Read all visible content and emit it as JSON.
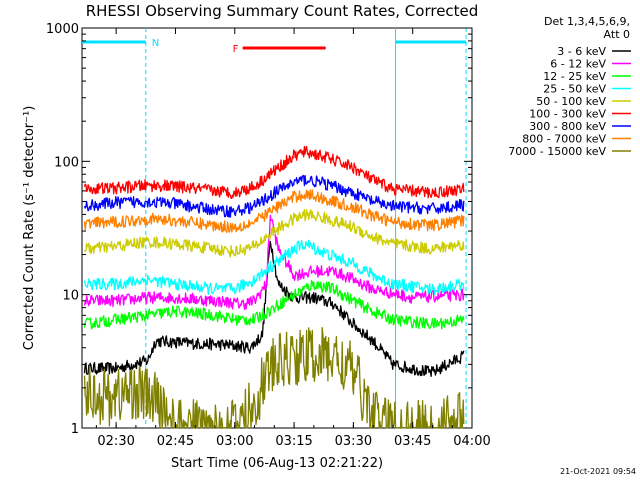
{
  "chart_data": {
    "type": "line",
    "title": "RHESSI Observing Summary Count Rates, Corrected",
    "xlabel": "Start Time (06-Aug-13 02:21:22)",
    "ylabel": "Corrected Count Rate (s⁻¹ detector⁻¹)",
    "y_scale": "log",
    "ylim": [
      1,
      1000
    ],
    "xlim": [
      "02:21:22",
      "04:00:00"
    ],
    "x_ticks": [
      "02:30",
      "02:45",
      "03:00",
      "03:15",
      "03:30",
      "03:45",
      "04:00"
    ],
    "y_ticks": [
      "1",
      "10",
      "100",
      "1000"
    ],
    "legend_header": [
      "Det 1,3,4,5,6,9,",
      "Att 0"
    ],
    "legend_position": "right",
    "grid": false,
    "series": [
      {
        "name": "3 - 6 keV",
        "color": "#000000",
        "x": [
          "02:22",
          "02:30",
          "02:38",
          "02:40",
          "02:50",
          "02:58",
          "03:04",
          "03:07",
          "03:09",
          "03:11",
          "03:15",
          "03:20",
          "03:25",
          "03:30",
          "03:35",
          "03:40",
          "03:50",
          "03:58"
        ],
        "y": [
          2.8,
          2.8,
          3.2,
          4.5,
          4.3,
          4.2,
          4.0,
          5.0,
          26,
          12,
          9.5,
          9.5,
          8.5,
          6,
          4.5,
          3.0,
          2.6,
          3.5
        ]
      },
      {
        "name": "6 - 12 keV",
        "color": "#ff00ff",
        "x": [
          "02:22",
          "02:30",
          "02:38",
          "02:45",
          "02:55",
          "03:02",
          "03:05",
          "03:08",
          "03:09",
          "03:11",
          "03:15",
          "03:20",
          "03:25",
          "03:30",
          "03:35",
          "03:45",
          "03:58"
        ],
        "y": [
          9,
          9,
          9.5,
          9.5,
          9,
          8.5,
          9,
          12,
          40,
          22,
          14,
          15,
          15,
          13,
          11,
          9.5,
          10
        ]
      },
      {
        "name": "12 - 25 keV",
        "color": "#00ff00",
        "x": [
          "02:22",
          "02:30",
          "02:38",
          "02:45",
          "02:55",
          "03:00",
          "03:05",
          "03:10",
          "03:15",
          "03:20",
          "03:25",
          "03:30",
          "03:35",
          "03:40",
          "03:50",
          "03:58"
        ],
        "y": [
          6,
          6.5,
          7,
          7.5,
          7,
          6.5,
          6.5,
          8,
          10,
          12,
          11,
          9,
          7.5,
          6.5,
          6,
          6.5
        ]
      },
      {
        "name": "25 - 50 keV",
        "color": "#00ffff",
        "x": [
          "02:22",
          "02:30",
          "02:38",
          "02:45",
          "02:55",
          "03:00",
          "03:05",
          "03:10",
          "03:15",
          "03:18",
          "03:22",
          "03:30",
          "03:35",
          "03:40",
          "03:50",
          "03:58"
        ],
        "y": [
          12,
          12,
          13,
          12,
          11,
          11,
          13,
          17,
          22,
          24,
          21,
          17,
          14,
          12,
          11,
          12
        ]
      },
      {
        "name": "50 - 100 keV",
        "color": "#cccc00",
        "x": [
          "02:22",
          "02:30",
          "02:38",
          "02:45",
          "02:55",
          "03:00",
          "03:05",
          "03:10",
          "03:15",
          "03:18",
          "03:22",
          "03:30",
          "03:35",
          "03:40",
          "03:50",
          "03:58"
        ],
        "y": [
          22,
          23,
          25,
          24,
          22,
          21,
          23,
          30,
          37,
          40,
          38,
          32,
          27,
          24,
          22,
          24
        ]
      },
      {
        "name": "100 - 300 keV",
        "color": "#ff0000",
        "x": [
          "02:22",
          "02:30",
          "02:38",
          "02:45",
          "02:55",
          "03:00",
          "03:05",
          "03:10",
          "03:15",
          "03:18",
          "03:22",
          "03:30",
          "03:35",
          "03:40",
          "03:50",
          "03:58"
        ],
        "y": [
          62,
          63,
          66,
          65,
          60,
          58,
          65,
          85,
          110,
          118,
          110,
          90,
          72,
          62,
          58,
          62
        ]
      },
      {
        "name": "300 - 800 keV",
        "color": "#0000ff",
        "x": [
          "02:22",
          "02:30",
          "02:38",
          "02:45",
          "02:55",
          "03:00",
          "03:05",
          "03:10",
          "03:15",
          "03:18",
          "03:22",
          "03:30",
          "03:35",
          "03:40",
          "03:50",
          "03:58"
        ],
        "y": [
          46,
          49,
          50,
          48,
          43,
          42,
          46,
          58,
          70,
          73,
          69,
          58,
          50,
          46,
          44,
          47
        ]
      },
      {
        "name": "800 - 7000 keV",
        "color": "#ff8000",
        "x": [
          "02:22",
          "02:30",
          "02:38",
          "02:45",
          "02:55",
          "03:00",
          "03:05",
          "03:10",
          "03:15",
          "03:18",
          "03:22",
          "03:30",
          "03:35",
          "03:40",
          "03:50",
          "03:58"
        ],
        "y": [
          34,
          35,
          37,
          36,
          33,
          32,
          35,
          44,
          54,
          57,
          53,
          45,
          39,
          35,
          33,
          36
        ]
      },
      {
        "name": "7000 - 15000 keV",
        "color": "#808000",
        "x": [
          "02:22",
          "02:28",
          "02:35",
          "02:40",
          "02:45",
          "02:50",
          "02:55",
          "03:00",
          "03:05",
          "03:08",
          "03:12",
          "03:15",
          "03:20",
          "03:25",
          "03:30",
          "03:35",
          "03:40",
          "03:50",
          "03:58"
        ],
        "y": [
          1.9,
          1.7,
          1.9,
          1.6,
          1.0,
          1.0,
          1.0,
          1.0,
          1.5,
          2.6,
          3.2,
          3.4,
          3.5,
          3.4,
          2.6,
          1.2,
          1.0,
          1.0,
          1.2
        ]
      }
    ],
    "annotations": [
      {
        "label": "N",
        "color": "#00e0ff",
        "type": "night",
        "x_start": "02:21:22",
        "x_end": "02:37:30"
      },
      {
        "label": "",
        "color": "#00e0ff",
        "type": "night",
        "x_start": "03:40:40",
        "x_end": "03:58:30"
      },
      {
        "label": "F",
        "color": "#ff0000",
        "type": "flare",
        "x_start": "03:02",
        "x_end": "03:23"
      }
    ]
  },
  "footer_timestamp": "21-Oct-2021 09:54"
}
